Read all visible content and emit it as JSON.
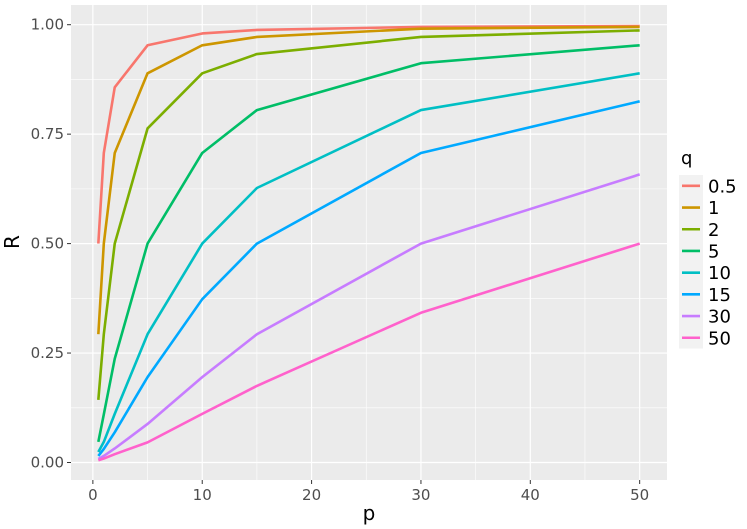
{
  "chart_data": {
    "type": "line",
    "xlabel": "p",
    "ylabel": "R",
    "xlim": [
      -2,
      52.5
    ],
    "ylim": [
      -0.04,
      1.045
    ],
    "x_ticks": [
      0,
      10,
      20,
      30,
      40,
      50
    ],
    "y_ticks": [
      0.0,
      0.25,
      0.5,
      0.75,
      1.0
    ],
    "x_tick_labels": [
      "0",
      "10",
      "20",
      "30",
      "40",
      "50"
    ],
    "y_tick_labels": [
      "0.00",
      "0.25",
      "0.50",
      "0.75",
      "1.00"
    ],
    "grid": true,
    "legend_title": "q",
    "legend_position": "right",
    "x": [
      0.5,
      1,
      2,
      5,
      10,
      15,
      30,
      50
    ],
    "series": [
      {
        "name": "0.5",
        "color": "#F8766D",
        "values": [
          0.5,
          0.707,
          0.857,
          0.953,
          0.98,
          0.988,
          0.995,
          0.997
        ]
      },
      {
        "name": "1",
        "color": "#CD9600",
        "values": [
          0.293,
          0.5,
          0.707,
          0.889,
          0.953,
          0.972,
          0.991,
          0.995
        ]
      },
      {
        "name": "2",
        "color": "#7CAE00",
        "values": [
          0.143,
          0.293,
          0.5,
          0.763,
          0.889,
          0.933,
          0.972,
          0.987
        ]
      },
      {
        "name": "5",
        "color": "#00BE67",
        "values": [
          0.047,
          0.11,
          0.237,
          0.5,
          0.707,
          0.805,
          0.912,
          0.953
        ]
      },
      {
        "name": "10",
        "color": "#00BFC4",
        "values": [
          0.024,
          0.047,
          0.111,
          0.293,
          0.5,
          0.627,
          0.805,
          0.889
        ]
      },
      {
        "name": "15",
        "color": "#00A9FF",
        "values": [
          0.015,
          0.031,
          0.069,
          0.195,
          0.373,
          0.5,
          0.707,
          0.825
        ]
      },
      {
        "name": "30",
        "color": "#C77CFF",
        "values": [
          0.008,
          0.015,
          0.032,
          0.088,
          0.195,
          0.293,
          0.5,
          0.658
        ]
      },
      {
        "name": "50",
        "color": "#FF61CC",
        "values": [
          0.005,
          0.009,
          0.019,
          0.046,
          0.111,
          0.175,
          0.342,
          0.5
        ]
      }
    ]
  }
}
